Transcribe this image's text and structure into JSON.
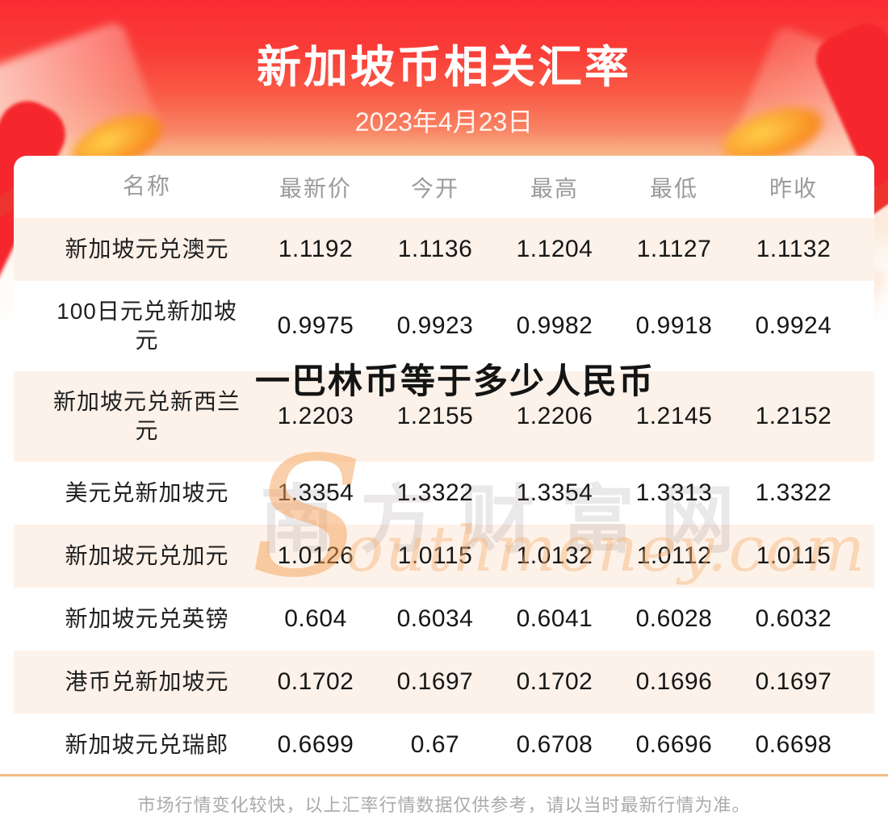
{
  "header": {
    "title": "新加坡币相关汇率",
    "date": "2023年4月23日"
  },
  "overlay_title": "一巴林币等于多少人民币",
  "chart_data": {
    "type": "table",
    "title": "新加坡币相关汇率",
    "date": "2023年4月23日",
    "columns": [
      "名称",
      "最新价",
      "今开",
      "最高",
      "最低",
      "昨收"
    ],
    "rows": [
      {
        "name": "新加坡元兑澳元",
        "values": [
          "1.1192",
          "1.1136",
          "1.1204",
          "1.1127",
          "1.1132"
        ]
      },
      {
        "name": "100日元兑新加坡\n元",
        "values": [
          "0.9975",
          "0.9923",
          "0.9982",
          "0.9918",
          "0.9924"
        ]
      },
      {
        "name": "新加坡元兑新西兰\n元",
        "values": [
          "1.2203",
          "1.2155",
          "1.2206",
          "1.2145",
          "1.2152"
        ]
      },
      {
        "name": "美元兑新加坡元",
        "values": [
          "1.3354",
          "1.3322",
          "1.3354",
          "1.3313",
          "1.3322"
        ]
      },
      {
        "name": "新加坡元兑加元",
        "values": [
          "1.0126",
          "1.0115",
          "1.0132",
          "1.0112",
          "1.0115"
        ]
      },
      {
        "name": "新加坡元兑英镑",
        "values": [
          "0.604",
          "0.6034",
          "0.6041",
          "0.6028",
          "0.6032"
        ]
      },
      {
        "name": "港币兑新加坡元",
        "values": [
          "0.1702",
          "0.1697",
          "0.1702",
          "0.1696",
          "0.1697"
        ]
      },
      {
        "name": "新加坡元兑瑞郎",
        "values": [
          "0.6699",
          "0.67",
          "0.6708",
          "0.6696",
          "0.6698"
        ]
      }
    ]
  },
  "watermark": {
    "cn": "南方财富网",
    "en_initial": "S",
    "en_rest": "outhmoney.com"
  },
  "footer": {
    "disclaimer": "市场行情变化较快，以上汇率行情数据仅供参考，请以当时最新行情为准。"
  },
  "colors": {
    "header_red": "#fb2b31",
    "row_highlight": "#fdf2e9",
    "divider": "#f2bc85",
    "watermark_orange": "#f5a360"
  }
}
